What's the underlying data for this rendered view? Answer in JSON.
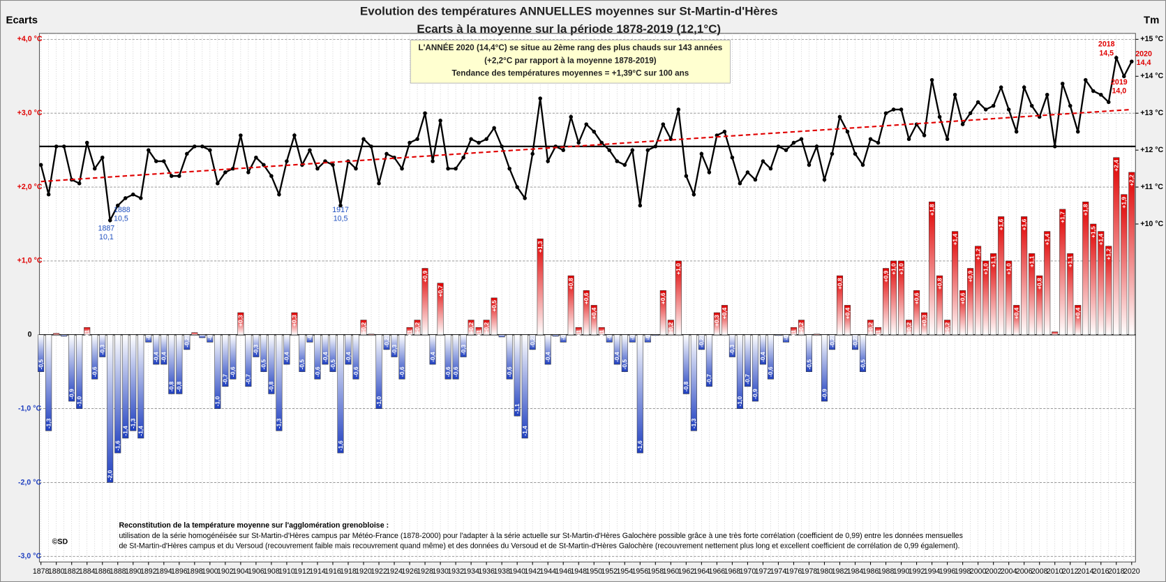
{
  "chart_data": {
    "type": "bar",
    "title": "Evolution des températures ANNUELLES moyennes sur St-Martin-d'Hères",
    "subtitle": "Ecarts à la moyenne sur la période 1878-2019 (12,1°C)",
    "ylabel": "Ecarts",
    "y2label": "Tm",
    "x": [
      1878,
      1879,
      1880,
      1881,
      1882,
      1883,
      1884,
      1885,
      1886,
      1887,
      1888,
      1889,
      1890,
      1891,
      1892,
      1893,
      1894,
      1895,
      1896,
      1897,
      1898,
      1899,
      1900,
      1901,
      1902,
      1903,
      1904,
      1905,
      1906,
      1907,
      1908,
      1909,
      1910,
      1911,
      1912,
      1913,
      1914,
      1915,
      1916,
      1917,
      1918,
      1919,
      1920,
      1921,
      1922,
      1923,
      1924,
      1925,
      1926,
      1927,
      1928,
      1929,
      1930,
      1931,
      1932,
      1933,
      1934,
      1935,
      1936,
      1937,
      1938,
      1939,
      1940,
      1941,
      1942,
      1943,
      1944,
      1945,
      1946,
      1947,
      1948,
      1949,
      1950,
      1951,
      1952,
      1953,
      1954,
      1955,
      1956,
      1957,
      1958,
      1959,
      1960,
      1961,
      1962,
      1963,
      1964,
      1965,
      1966,
      1967,
      1968,
      1969,
      1970,
      1971,
      1972,
      1973,
      1974,
      1975,
      1976,
      1977,
      1978,
      1979,
      1980,
      1981,
      1982,
      1983,
      1984,
      1985,
      1986,
      1987,
      1988,
      1989,
      1990,
      1991,
      1992,
      1993,
      1994,
      1995,
      1996,
      1997,
      1998,
      1999,
      2000,
      2001,
      2002,
      2003,
      2004,
      2005,
      2006,
      2007,
      2008,
      2009,
      2010,
      2011,
      2012,
      2013,
      2014,
      2015,
      2016,
      2017,
      2018,
      2019,
      2020
    ],
    "series": [
      {
        "type": "bar",
        "color_pos": "#e00000",
        "color_neg": "#2040c0",
        "values": [
          -0.5,
          -1.3,
          0.02,
          -0.02,
          -0.9,
          -1.0,
          0.1,
          -0.6,
          -0.3,
          -2.0,
          -1.6,
          -1.4,
          -1.3,
          -1.4,
          -0.1,
          -0.4,
          -0.4,
          -0.8,
          -0.8,
          -0.2,
          0.03,
          -0.04,
          -0.1,
          -1.0,
          -0.7,
          -0.6,
          0.3,
          -0.7,
          -0.3,
          -0.5,
          -0.8,
          -1.3,
          -0.4,
          0.3,
          -0.5,
          -0.1,
          -0.6,
          -0.4,
          -0.5,
          -1.6,
          -0.4,
          -0.6,
          0.2,
          0.01,
          -1.0,
          -0.2,
          -0.3,
          -0.6,
          0.1,
          0.2,
          0.9,
          -0.4,
          0.7,
          -0.6,
          -0.6,
          -0.3,
          0.2,
          0.1,
          0.2,
          0.5,
          -0.03,
          -0.6,
          -1.1,
          -1.4,
          -0.2,
          1.3,
          -0.4,
          -0.02,
          -0.1,
          0.8,
          0.1,
          0.6,
          0.4,
          0.1,
          -0.1,
          -0.4,
          -0.5,
          -0.1,
          -1.6,
          -0.1,
          -0.01,
          0.6,
          0.2,
          1.0,
          -0.8,
          -1.3,
          -0.2,
          -0.7,
          0.3,
          0.4,
          -0.3,
          -1.0,
          -0.7,
          -0.9,
          -0.4,
          -0.6,
          -0.01,
          -0.1,
          0.1,
          0.2,
          -0.5,
          0.01,
          -0.9,
          -0.2,
          0.8,
          0.4,
          -0.2,
          -0.5,
          0.2,
          0.1,
          0.9,
          1.0,
          1.0,
          0.2,
          0.6,
          0.3,
          1.8,
          0.8,
          0.2,
          1.4,
          0.6,
          0.9,
          1.2,
          1.0,
          1.1,
          1.6,
          1.0,
          0.4,
          1.6,
          1.1,
          0.8,
          1.4,
          0.04,
          1.7,
          1.1,
          0.4,
          1.8,
          1.5,
          1.4,
          1.2,
          2.4,
          1.9,
          2.2
        ],
        "value_labels": [
          "-0,5",
          "-1,3",
          null,
          null,
          "-0,9",
          "-1,0",
          "+0,1",
          "-0,6",
          "-0,3",
          "-2,0",
          "-1,6",
          "-1,4",
          "-1,3",
          "-1,4",
          "-0,1",
          "-0,4",
          "-0,4",
          "-0,8",
          "-0,8",
          "-0,2",
          null,
          null,
          "-0,1",
          "-1,0",
          "-0,7",
          "-0,6",
          "+0,3",
          "-0,7",
          "-0,3",
          "-0,5",
          "-0,8",
          "-1,3",
          "-0,4",
          "+0,3",
          "-0,5",
          "-0,1",
          "-0,6",
          "-0,4",
          "-0,5",
          "-1,6",
          "-0,4",
          "-0,6",
          "+0,2",
          null,
          "-1,0",
          "-0,2",
          "-0,3",
          "-0,6",
          "+0,1",
          "+0,2",
          "+0,9",
          "-0,4",
          "+0,7",
          "-0,6",
          "-0,6",
          "-0,3",
          "+0,2",
          "+0,1",
          "+0,2",
          "+0,5",
          null,
          "-0,6",
          "-1,1",
          "-1,4",
          "-0,2",
          "+1,3",
          "-0,4",
          null,
          "-0,1",
          "+0,8",
          "+0,1",
          "+0,6",
          "+0,4",
          "+0,1",
          "-0,1",
          "-0,4",
          "-0,5",
          "-0,1",
          "-1,6",
          "-0,1",
          null,
          "+0,6",
          "+0,2",
          "+1,0",
          "-0,8",
          "-1,3",
          "-0,2",
          "-0,7",
          "+0,3",
          "+0,4",
          "-0,3",
          "-1,0",
          "-0,7",
          "-0,9",
          "-0,4",
          "-0,6",
          null,
          "-0,1",
          "+0,1",
          "+0,2",
          "-0,5",
          null,
          "-0,9",
          "-0,2",
          "+0,8",
          "+0,4",
          "-0,2",
          "-0,5",
          "+0,2",
          "+0,1",
          "+0,9",
          "+1,0",
          "+1,0",
          "+0,2",
          "+0,6",
          "+0,3",
          "+1,8",
          "+0,8",
          "+0,2",
          "+1,4",
          "+0,6",
          "+0,9",
          "+1,2",
          "+1,0",
          "+1,1",
          "+1,6",
          "+1,0",
          "+0,4",
          "+1,6",
          "+1,1",
          "+0,8",
          "+1,4",
          null,
          "+1,7",
          "+1,1",
          "+0,4",
          "+1,8",
          "+1,5",
          "+1,4",
          "+1,2",
          "+2,4",
          "+1,9",
          "+2,2"
        ]
      },
      {
        "type": "line",
        "color": "#000000",
        "axis": "y2",
        "values": [
          11.6,
          10.8,
          12.1,
          12.1,
          11.2,
          11.1,
          12.2,
          11.5,
          11.8,
          10.1,
          10.5,
          10.7,
          10.8,
          10.7,
          12.0,
          11.7,
          11.7,
          11.3,
          11.3,
          11.9,
          12.1,
          12.1,
          12.0,
          11.1,
          11.4,
          11.5,
          12.4,
          11.4,
          11.8,
          11.6,
          11.3,
          10.8,
          11.7,
          12.4,
          11.6,
          12.0,
          11.5,
          11.7,
          11.6,
          10.5,
          11.7,
          11.5,
          12.3,
          12.1,
          11.1,
          11.9,
          11.8,
          11.5,
          12.2,
          12.3,
          13.0,
          11.7,
          12.8,
          11.5,
          11.5,
          11.8,
          12.3,
          12.2,
          12.3,
          12.6,
          12.1,
          11.5,
          11.0,
          10.7,
          11.9,
          13.4,
          11.7,
          12.1,
          12.0,
          12.9,
          12.2,
          12.7,
          12.5,
          12.2,
          12.0,
          11.7,
          11.6,
          12.0,
          10.5,
          12.0,
          12.1,
          12.7,
          12.3,
          13.1,
          11.3,
          10.8,
          11.9,
          11.4,
          12.4,
          12.5,
          11.8,
          11.1,
          11.4,
          11.2,
          11.7,
          11.5,
          12.1,
          12.0,
          12.2,
          12.3,
          11.6,
          12.1,
          11.2,
          11.9,
          12.9,
          12.5,
          11.9,
          11.6,
          12.3,
          12.2,
          13.0,
          13.1,
          13.1,
          12.3,
          12.7,
          12.4,
          13.9,
          12.9,
          12.3,
          13.5,
          12.7,
          13.0,
          13.3,
          13.1,
          13.2,
          13.7,
          13.1,
          12.5,
          13.7,
          13.2,
          12.9,
          13.5,
          12.1,
          13.8,
          13.2,
          12.5,
          13.9,
          13.6,
          13.5,
          13.3,
          14.5,
          14.0,
          14.4
        ]
      }
    ],
    "trend": {
      "x": [
        1878,
        2020
      ],
      "values": [
        11.15,
        13.1
      ],
      "color": "#e00000",
      "axis": "y2"
    },
    "mean": {
      "value": 12.1,
      "color": "#000000",
      "axis": "y2"
    },
    "xlim": [
      1877.8,
      2020.5
    ],
    "xticks": [
      1878,
      1880,
      1882,
      1884,
      1886,
      1888,
      1890,
      1892,
      1894,
      1896,
      1898,
      1900,
      1902,
      1904,
      1906,
      1908,
      1910,
      1912,
      1914,
      1916,
      1918,
      1920,
      1922,
      1924,
      1926,
      1928,
      1930,
      1932,
      1934,
      1936,
      1938,
      1940,
      1942,
      1944,
      1946,
      1948,
      1950,
      1952,
      1954,
      1956,
      1958,
      1960,
      1962,
      1964,
      1966,
      1968,
      1970,
      1972,
      1974,
      1976,
      1978,
      1980,
      1982,
      1984,
      1986,
      1988,
      1990,
      1992,
      1994,
      1996,
      1998,
      2000,
      2002,
      2004,
      2006,
      2008,
      2010,
      2012,
      2014,
      2016,
      2018,
      2020
    ],
    "ylim": [
      -3,
      4
    ],
    "yticks": [
      {
        "value": 4,
        "label": "+4,0 °C"
      },
      {
        "value": 3,
        "label": "+3,0 °C"
      },
      {
        "value": 2,
        "label": "+2,0 °C"
      },
      {
        "value": 1,
        "label": "+1,0 °C"
      },
      0,
      {
        "value": -1,
        "label": "-1,0 °C"
      },
      {
        "value": -2,
        "label": "-2,0 °C"
      },
      {
        "value": -3,
        "label": "-3,0 °C"
      }
    ],
    "y2lim": [
      1,
      15
    ],
    "y2ticks": [
      {
        "value": 15,
        "label": "+15 °C"
      },
      {
        "value": 14,
        "label": "+14 °C"
      },
      {
        "value": 13,
        "label": "+13 °C"
      },
      {
        "value": 12,
        "label": "+12 °C"
      },
      {
        "value": 11,
        "label": "+11 °C"
      },
      {
        "value": 10,
        "label": "+10 °C"
      }
    ],
    "grid": true,
    "info_box": [
      "L'ANNÉE 2020 (14,4°C)  se situe au 2ème rang des plus chauds sur 143 années",
      "(+2,2°C par rapport à la moyenne 1878-2019)",
      "Tendance des températures moyennes = +1,39°C sur 100 ans"
    ],
    "annotations": [
      {
        "year": "1887",
        "temp": "10,1"
      },
      {
        "year": "1888",
        "temp": "10,5"
      },
      {
        "year": "1917",
        "temp": "10,5"
      },
      {
        "year": "2018",
        "temp": "14,5"
      },
      {
        "year": "2019",
        "temp": "14,0"
      },
      {
        "year": "2020",
        "temp": "14,4"
      }
    ],
    "footnote": {
      "heading": "Reconstitution de la température moyenne sur l'agglomération grenobloise :",
      "lines": [
        "utilisation de la série homogénéisée sur St-Martin-d'Hères campus par Météo-France (1878-2000) pour l'adapter à la série actuelle sur St-Martin-d'Hères Galochère possible  grâce à une très forte corrélation (coefficient de 0,99) entre  les données mensuelles",
        "de St-Martin-d'Hères campus et du Versoud (recouvrement faible mais recouvrement quand même) et des données du Versoud et de St-Martin-d'Hères Galochère (recouvrement nettement plus long et excellent coefficient de corrélation de 0,99 également)."
      ]
    },
    "credit": "©SD"
  }
}
